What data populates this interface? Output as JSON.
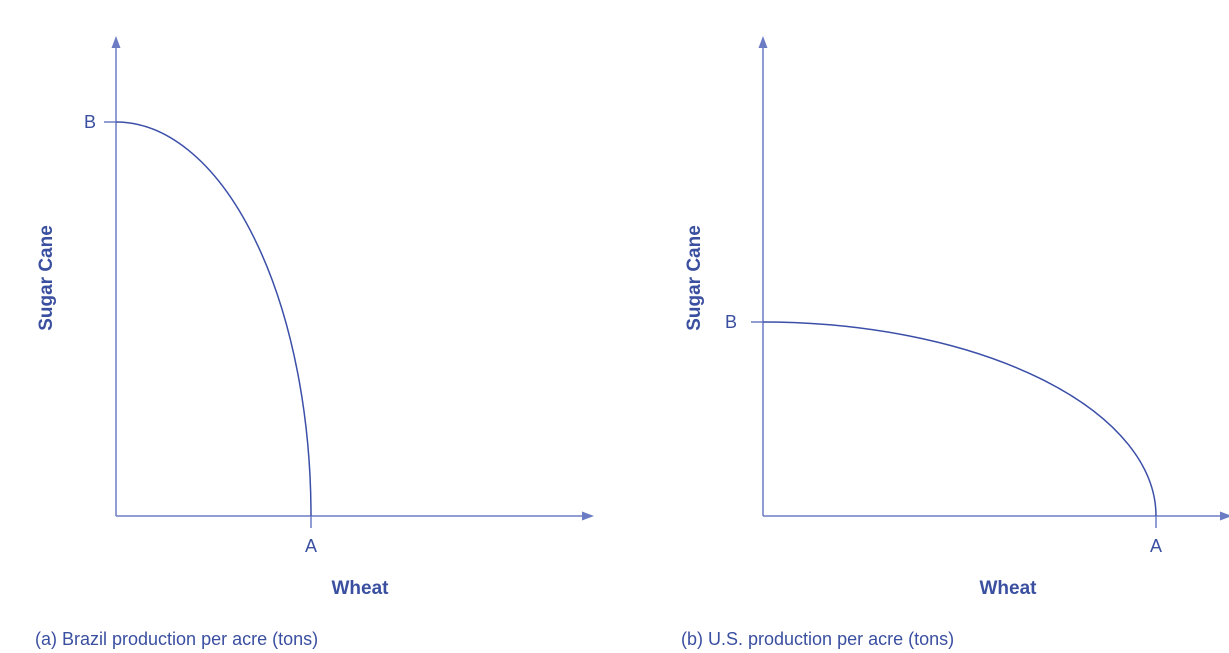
{
  "panels": [
    {
      "y_label": "Sugar Cane",
      "x_label": "Wheat",
      "point_b": "B",
      "point_a": "A",
      "caption": "(a) Brazil production per acre (tons)"
    },
    {
      "y_label": "Sugar Cane",
      "x_label": "Wheat",
      "point_b": "B",
      "point_a": "A",
      "caption": "(b) U.S. production per acre (tons)"
    }
  ]
}
